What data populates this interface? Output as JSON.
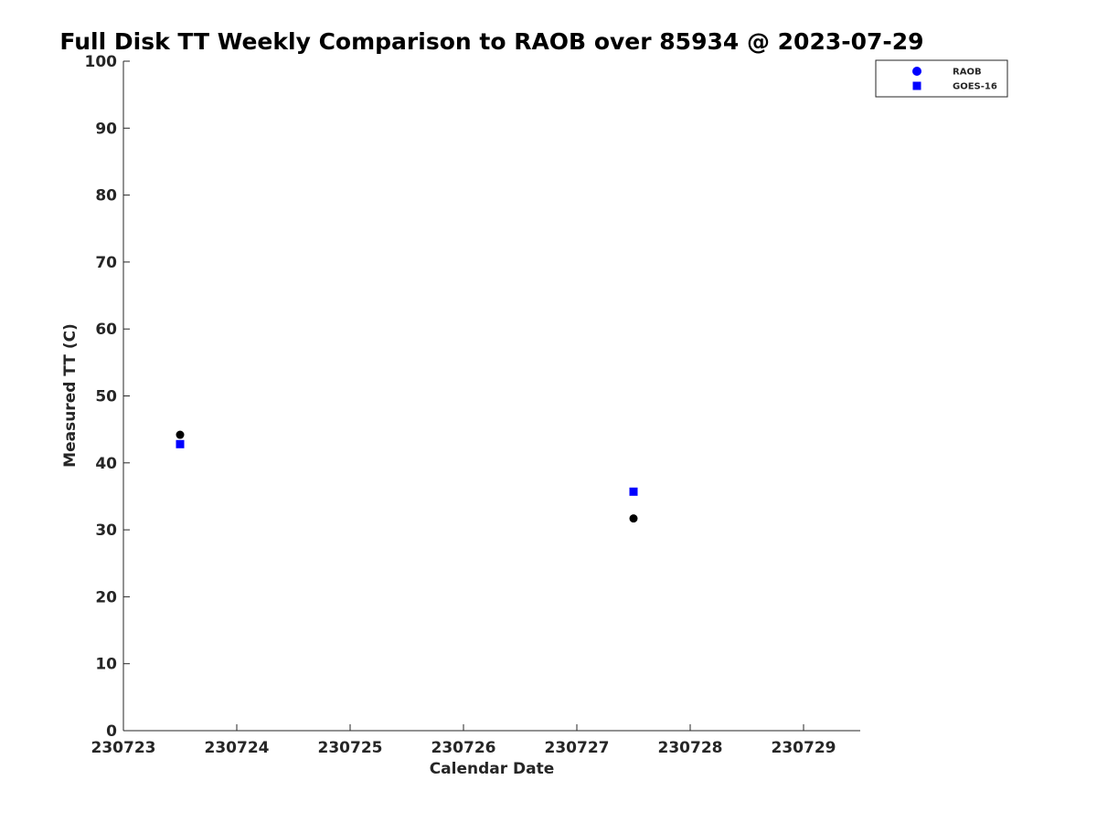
{
  "chart_data": {
    "type": "scatter",
    "title": "Full Disk TT Weekly Comparison to RAOB over 85934 @ 2023-07-29",
    "xlabel": "Calendar Date",
    "ylabel": "Measured TT (C)",
    "x_ticks": [
      "230723",
      "230724",
      "230725",
      "230726",
      "230727",
      "230728",
      "230729"
    ],
    "xlim": [
      "230723",
      "230729.5"
    ],
    "ylim": [
      0,
      100
    ],
    "y_ticks": [
      0,
      10,
      20,
      30,
      40,
      50,
      60,
      70,
      80,
      90,
      100
    ],
    "grid": false,
    "legend_placement": "outside-top-right",
    "series": [
      {
        "name": "RAOB",
        "marker": "circle",
        "legend_color": "#0000ff",
        "color": "#000000",
        "points": [
          {
            "x": "230723.5",
            "y": 44.2
          },
          {
            "x": "230727.5",
            "y": 31.7
          }
        ]
      },
      {
        "name": "GOES-16",
        "marker": "square",
        "legend_color": "#0000ff",
        "color": "#0000ff",
        "points": [
          {
            "x": "230723.5",
            "y": 42.8
          },
          {
            "x": "230727.5",
            "y": 35.7
          }
        ]
      }
    ]
  }
}
